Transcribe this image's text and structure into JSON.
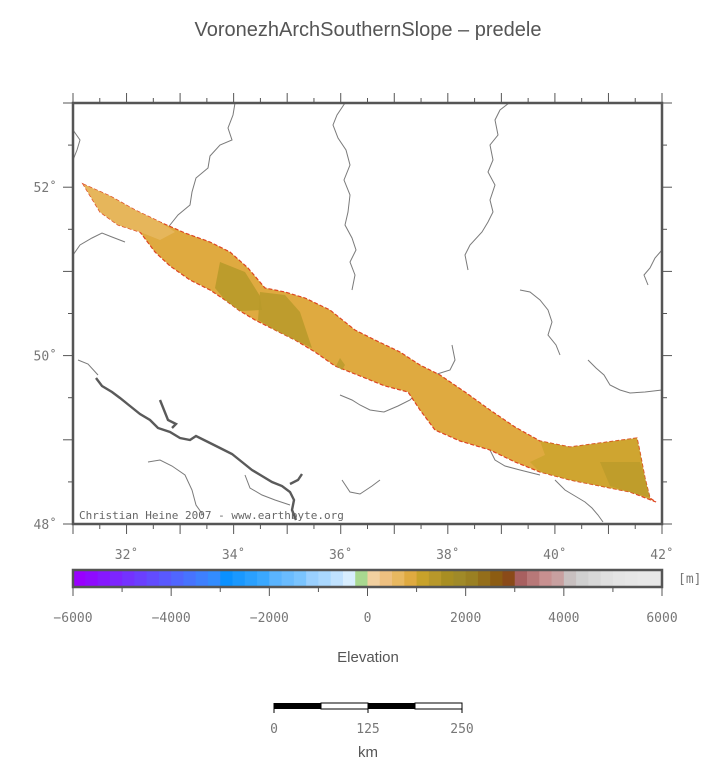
{
  "title": "VoronezhArchSouthernSlope – predele",
  "credit": "Christian Heine 2007 - www.earthbyte.org",
  "map": {
    "lon_range": [
      31,
      42
    ],
    "lat_range": [
      48,
      53
    ],
    "lat_ticks": [
      {
        "value": 52,
        "label": "52˚"
      },
      {
        "value": 50,
        "label": "50˚"
      },
      {
        "value": 48,
        "label": "48˚"
      }
    ],
    "lon_ticks": [
      {
        "value": 32,
        "label": "32˚"
      },
      {
        "value": 34,
        "label": "34˚"
      },
      {
        "value": 36,
        "label": "36˚"
      },
      {
        "value": 38,
        "label": "38˚"
      },
      {
        "value": 40,
        "label": "40˚"
      },
      {
        "value": 42,
        "label": "42˚"
      }
    ],
    "colors": {
      "frame": "#555555",
      "region_fill": "#dfaa40",
      "region_light": "#e8b860",
      "region_dark": "#b89a2a",
      "region_outline": "#dd4422",
      "rivers": "#777777",
      "border": "#555555"
    }
  },
  "colorbar": {
    "unit": "[m]",
    "range": [
      -6000,
      6000
    ],
    "ticks": [
      {
        "value": -6000,
        "label": "−6000"
      },
      {
        "value": -4000,
        "label": "−4000"
      },
      {
        "value": -2000,
        "label": "−2000"
      },
      {
        "value": 0,
        "label": "0"
      },
      {
        "value": 2000,
        "label": "2000"
      },
      {
        "value": 4000,
        "label": "4000"
      },
      {
        "value": 6000,
        "label": "6000"
      }
    ],
    "label": "Elevation",
    "colors": [
      "#9900ff",
      "#8f0bff",
      "#8618ff",
      "#7d25ff",
      "#7432ff",
      "#6b3fff",
      "#624cff",
      "#5959ff",
      "#5066ff",
      "#4773ff",
      "#3e80ff",
      "#338cff",
      "#0a90ff",
      "#1a98ff",
      "#2aa0ff",
      "#3aa8ff",
      "#5ab4ff",
      "#6abcff",
      "#7ac4ff",
      "#9ad0ff",
      "#aad8ff",
      "#c0e2ff",
      "#d8eeff",
      "#a8d890",
      "#f2d0a0",
      "#eec080",
      "#e8b860",
      "#dfaa40",
      "#c8a22a",
      "#b8982a",
      "#a88e22",
      "#a08a28",
      "#9a8022",
      "#946e1a",
      "#8c5c12",
      "#8a4a18",
      "#a86060",
      "#b87878",
      "#c89090",
      "#c8a0a0",
      "#c8c0c0",
      "#d0d0d0",
      "#d8d8d8",
      "#e0e0e0",
      "#e4e4e4",
      "#e6e6e6",
      "#e8e8e8",
      "#e8e8e8"
    ]
  },
  "scalebar": {
    "ticks": [
      "0",
      "125",
      "250"
    ],
    "unit": "km"
  }
}
